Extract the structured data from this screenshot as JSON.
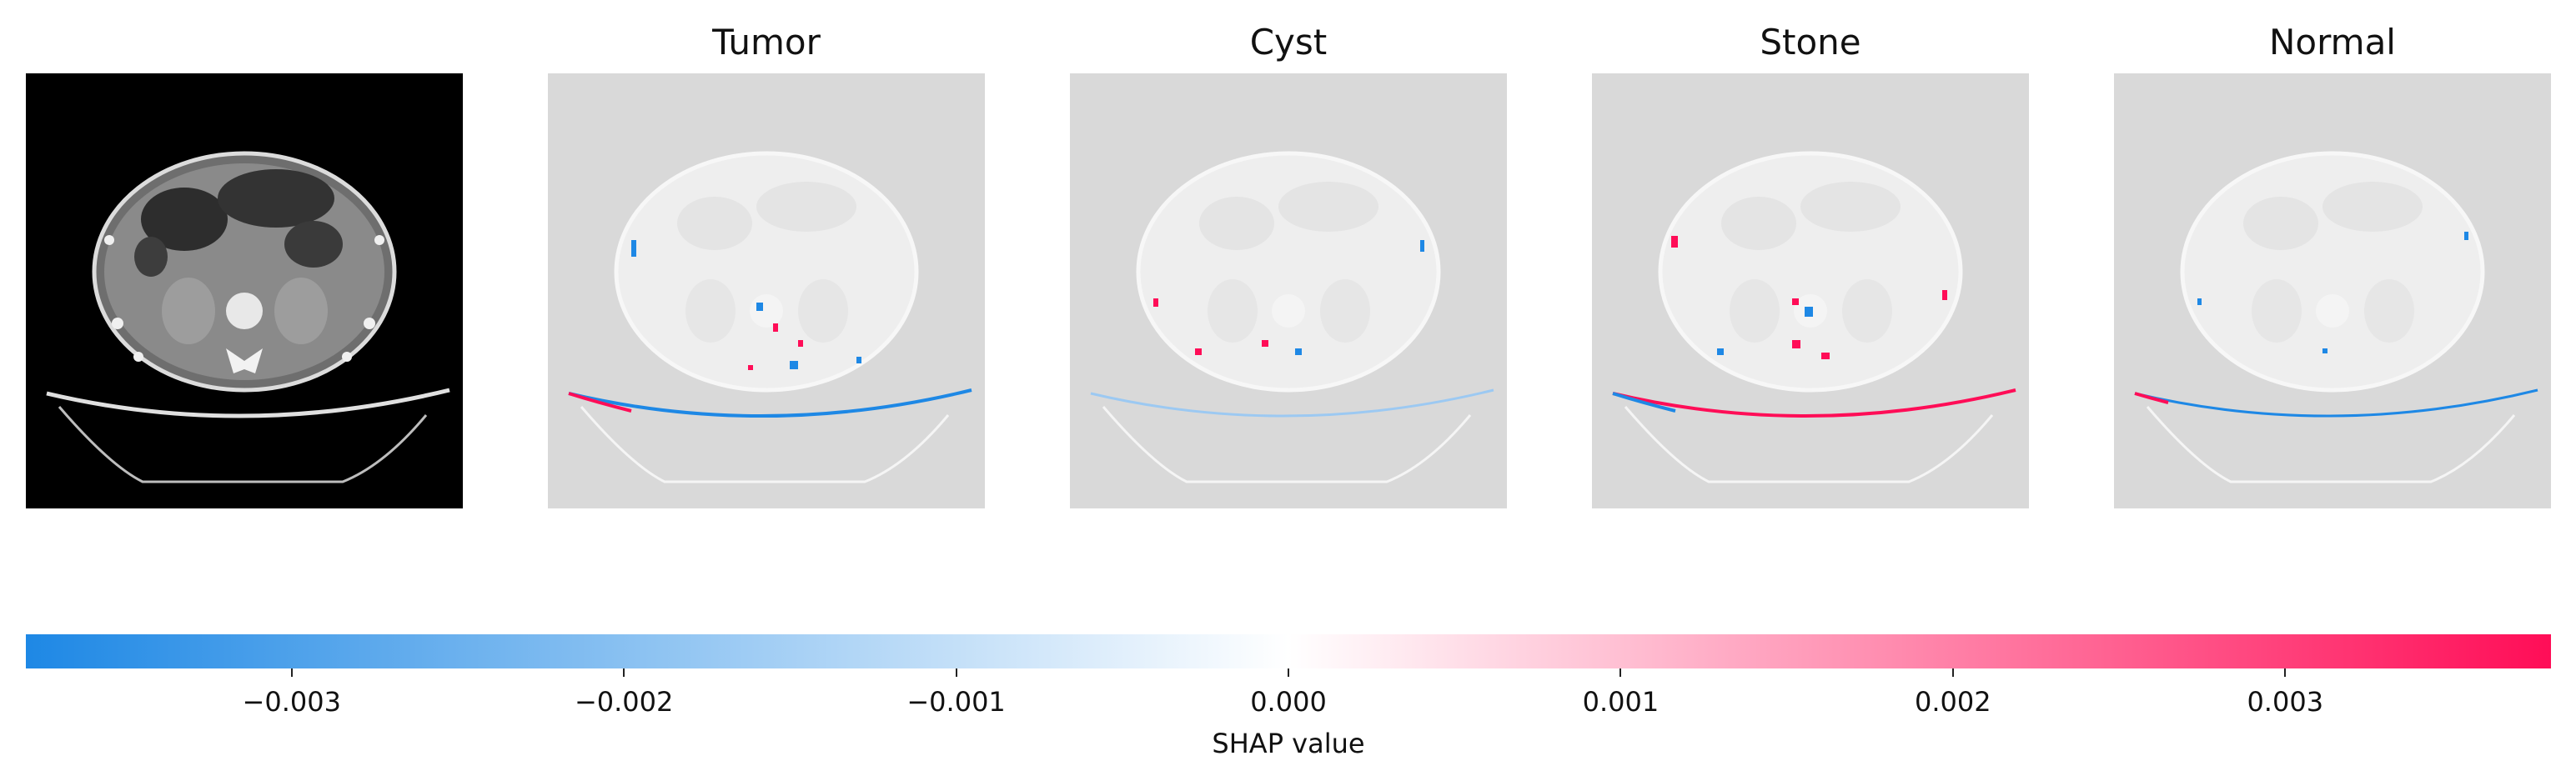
{
  "panels": {
    "original": {
      "title": ""
    },
    "titles": [
      "Tumor",
      "Cyst",
      "Stone",
      "Normal"
    ]
  },
  "colors": {
    "negative": "#1e88e5",
    "zero": "#ffffff",
    "positive": "#ff0d57",
    "shap_background": "#d9d9d9",
    "ct_background": "#000000"
  },
  "colorbar": {
    "label": "SHAP value",
    "min": -0.0038,
    "max": 0.0038,
    "ticks": [
      {
        "value": -0.003,
        "label": "−0.003"
      },
      {
        "value": -0.002,
        "label": "−0.002"
      },
      {
        "value": -0.001,
        "label": "−0.001"
      },
      {
        "value": 0.0,
        "label": "0.000"
      },
      {
        "value": 0.001,
        "label": "0.001"
      },
      {
        "value": 0.002,
        "label": "0.002"
      },
      {
        "value": 0.003,
        "label": "0.003"
      }
    ]
  }
}
